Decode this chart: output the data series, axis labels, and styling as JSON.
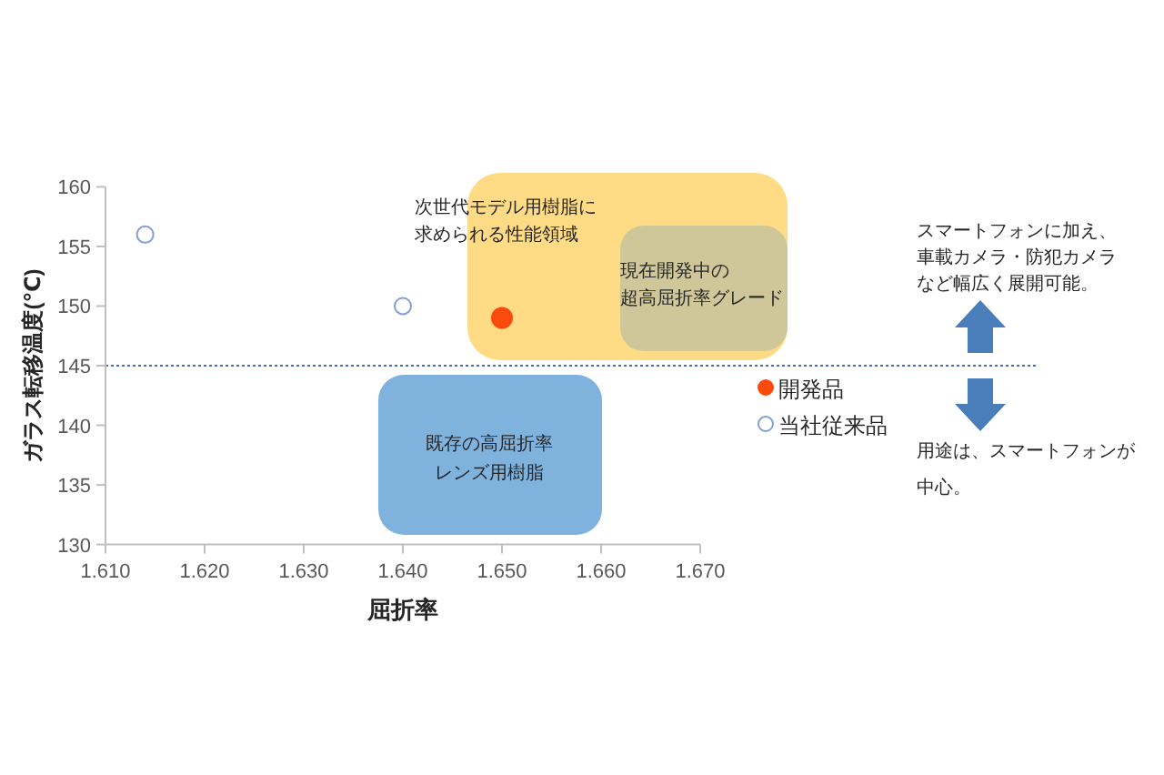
{
  "chart_data": {
    "type": "scatter",
    "xlabel": "屈折率",
    "ylabel": "ガラス転移温度(℃)",
    "xlim": [
      1.61,
      1.67
    ],
    "ylim": [
      130,
      160
    ],
    "xticks": [
      {
        "value": 1.61,
        "label": "1.610"
      },
      {
        "value": 1.62,
        "label": "1.620"
      },
      {
        "value": 1.63,
        "label": "1.630"
      },
      {
        "value": 1.64,
        "label": "1.640"
      },
      {
        "value": 1.65,
        "label": "1.650"
      },
      {
        "value": 1.66,
        "label": "1.660"
      },
      {
        "value": 1.67,
        "label": "1.670"
      }
    ],
    "yticks": [
      130,
      135,
      140,
      145,
      150,
      155,
      160
    ],
    "series": [
      {
        "name": "開発品",
        "color": "#fa4a0c",
        "x": [
          1.65
        ],
        "values": [
          149
        ]
      },
      {
        "name": "当社従来品",
        "color": "#7e9fd8",
        "x": [
          1.614,
          1.64
        ],
        "values": [
          156,
          150
        ]
      }
    ],
    "ref_lines": [
      {
        "axis": "y",
        "value": 145,
        "color": "#4a6aab",
        "line_style": "dotted"
      }
    ],
    "annotations": [
      "次世代モデル用樹脂に求められる性能領域",
      "現在開発中の超高屈折率グレード",
      "既存の高屈折率レンズ用樹脂",
      "スマートフォンに加え、車載カメラ・防犯カメラなど幅広く展開可能。",
      "用途は、スマートフォンが中心。"
    ],
    "legend": "right",
    "marker": "circle",
    "grid": false
  }
}
